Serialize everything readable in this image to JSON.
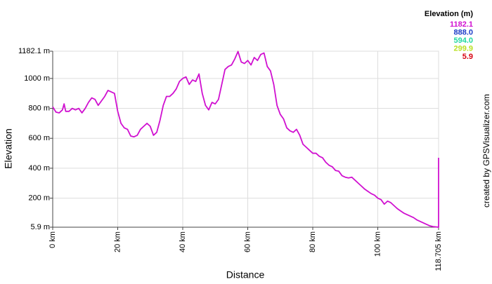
{
  "chart_data": {
    "type": "line",
    "xlabel": "Distance",
    "ylabel": "Elevation",
    "legend_title": "Elevation (m)",
    "credit": "created by GPSVisualizer.com",
    "xlim": [
      0,
      118.705
    ],
    "ylim": [
      5.9,
      1182.1
    ],
    "xticks": [
      {
        "value": 0,
        "label": "0 km"
      },
      {
        "value": 20,
        "label": "20 km"
      },
      {
        "value": 40,
        "label": "40 km"
      },
      {
        "value": 60,
        "label": "60 km"
      },
      {
        "value": 80,
        "label": "80 km"
      },
      {
        "value": 100,
        "label": "100 km"
      },
      {
        "value": 118.705,
        "label": "118.705 km"
      }
    ],
    "yticks": [
      {
        "value": 5.9,
        "label": "5.9 m"
      },
      {
        "value": 200,
        "label": "200 m"
      },
      {
        "value": 400,
        "label": "400 m"
      },
      {
        "value": 600,
        "label": "600 m"
      },
      {
        "value": 800,
        "label": "800 m"
      },
      {
        "value": 1000,
        "label": "1000 m"
      },
      {
        "value": 1182.1,
        "label": "1182.1 m"
      }
    ],
    "grid": true,
    "colorscale": [
      {
        "value": 1182.1,
        "label": "1182.1",
        "color": "#d010d0"
      },
      {
        "value": 888,
        "label": "888.0",
        "color": "#1c3cc8"
      },
      {
        "value": 594,
        "label": "594.0",
        "color": "#20d8a0"
      },
      {
        "value": 299.9,
        "label": "299.9",
        "color": "#b8e020"
      },
      {
        "value": 5.9,
        "label": "5.9",
        "color": "#d80010"
      }
    ],
    "x": [
      0,
      1,
      2,
      3,
      3.5,
      4,
      5,
      6,
      7,
      8,
      9,
      10,
      11,
      12,
      13,
      14,
      15,
      16,
      17,
      18,
      19,
      20,
      21,
      22,
      23,
      24,
      25,
      26,
      27,
      28,
      29,
      30,
      31,
      32,
      33,
      34,
      35,
      36,
      37,
      38,
      39,
      40,
      41,
      42,
      43,
      44,
      45,
      46,
      47,
      48,
      49,
      50,
      51,
      52,
      53,
      54,
      55,
      56,
      57,
      58,
      59,
      60,
      61,
      62,
      63,
      64,
      65,
      66,
      67,
      68,
      69,
      70,
      71,
      72,
      73,
      74,
      75,
      76,
      77,
      78,
      79,
      80,
      81,
      82,
      83,
      84,
      85,
      86,
      87,
      88,
      89,
      90,
      91,
      92,
      93,
      94,
      95,
      96,
      97,
      98,
      99,
      100,
      101,
      102,
      103,
      104,
      105,
      106,
      107,
      108,
      109,
      110,
      111,
      112,
      113,
      114,
      115,
      116,
      117,
      118.705,
      118.705
    ],
    "values": [
      810,
      775,
      770,
      790,
      830,
      780,
      780,
      800,
      790,
      800,
      770,
      800,
      840,
      870,
      860,
      820,
      850,
      880,
      920,
      910,
      900,
      780,
      700,
      670,
      660,
      615,
      610,
      620,
      660,
      680,
      700,
      680,
      620,
      640,
      720,
      820,
      880,
      880,
      900,
      930,
      980,
      1000,
      1010,
      960,
      990,
      980,
      1030,
      900,
      820,
      790,
      840,
      830,
      860,
      960,
      1060,
      1080,
      1090,
      1130,
      1180,
      1110,
      1100,
      1120,
      1090,
      1140,
      1120,
      1160,
      1170,
      1080,
      1050,
      960,
      820,
      760,
      730,
      670,
      650,
      640,
      660,
      620,
      560,
      540,
      520,
      500,
      500,
      480,
      470,
      440,
      420,
      410,
      385,
      380,
      350,
      340,
      335,
      340,
      320,
      300,
      280,
      260,
      245,
      230,
      220,
      200,
      190,
      160,
      180,
      170,
      150,
      130,
      115,
      100,
      90,
      80,
      70,
      55,
      45,
      35,
      25,
      15,
      10,
      5.9,
      470
    ]
  }
}
